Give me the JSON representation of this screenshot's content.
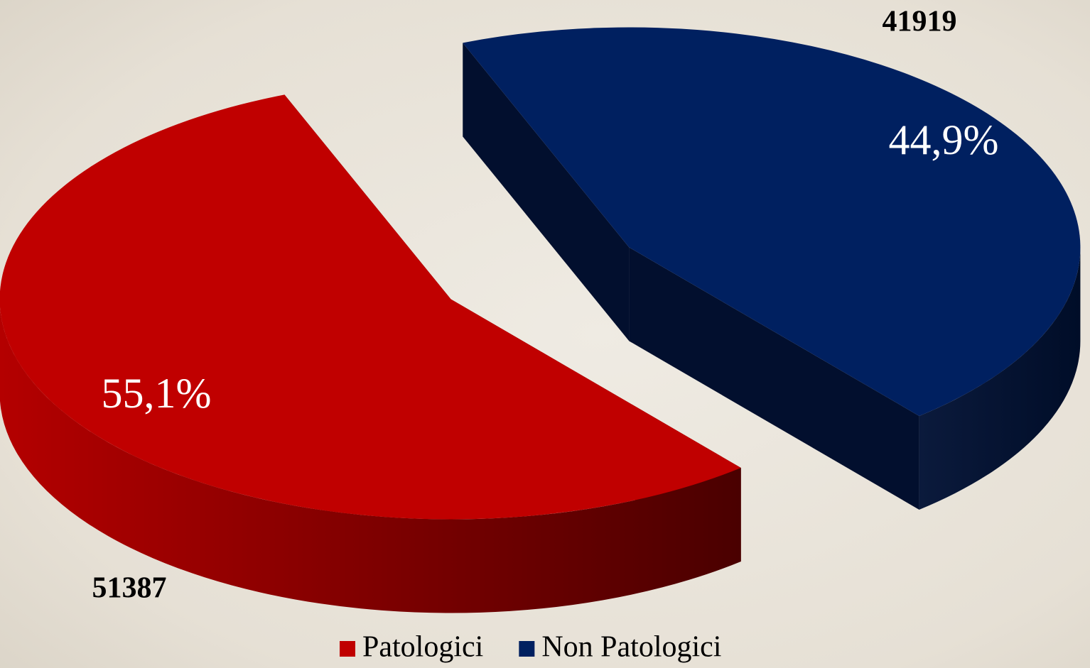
{
  "chart_data": {
    "type": "pie",
    "categories": [
      "Patologici",
      "Non Patologici"
    ],
    "values": [
      55.1,
      44.9
    ],
    "value_labels": [
      "55,1%",
      "44,9%"
    ],
    "counts": [
      51387,
      41919
    ],
    "colors": [
      "#c00000",
      "#002060"
    ],
    "legend": "bottom"
  }
}
